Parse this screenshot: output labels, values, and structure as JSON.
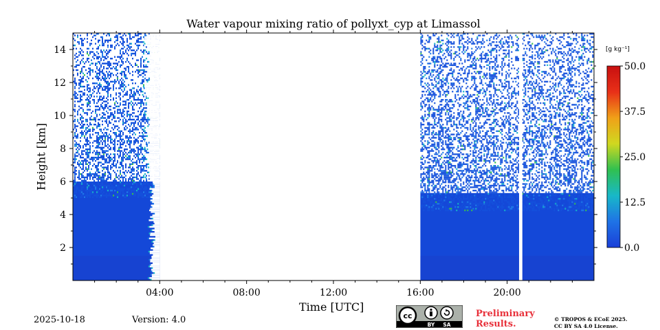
{
  "footer": {
    "date": "2025-10-18",
    "version": "Version: 4.0",
    "preliminary_line1": "Preliminary",
    "preliminary_line2": "Results.",
    "copyright_line1": "© TROPOS & ECoE 2025.",
    "copyright_line2": "CC BY SA 4.0 License.",
    "license_badge": {
      "cc": "cc",
      "by": "BY",
      "sa": "SA"
    }
  },
  "chart_data": {
    "type": "heatmap",
    "title": "Water vapour mixing ratio of pollyxt_cyp at Limassol",
    "xlabel": "Time [UTC]",
    "ylabel": "Height [km]",
    "xlim": [
      0,
      24
    ],
    "ylim": [
      0,
      15
    ],
    "x_ticks": [
      {
        "value": 4,
        "label": "04:00"
      },
      {
        "value": 8,
        "label": "08:00"
      },
      {
        "value": 12,
        "label": "12:00"
      },
      {
        "value": 16,
        "label": "16:00"
      },
      {
        "value": 20,
        "label": "20:00"
      }
    ],
    "y_ticks": [
      {
        "value": 2,
        "label": "2"
      },
      {
        "value": 4,
        "label": "4"
      },
      {
        "value": 6,
        "label": "6"
      },
      {
        "value": 8,
        "label": "8"
      },
      {
        "value": 10,
        "label": "10"
      },
      {
        "value": 12,
        "label": "12"
      },
      {
        "value": 14,
        "label": "14"
      }
    ],
    "colorbar": {
      "unit": "[g kg⁻¹]",
      "range": [
        0,
        50
      ],
      "ticks": [
        {
          "value": 0,
          "label": "0.0"
        },
        {
          "value": 12.5,
          "label": "12.5"
        },
        {
          "value": 25,
          "label": "25.0"
        },
        {
          "value": 37.5,
          "label": "37.5"
        },
        {
          "value": 50,
          "label": "50.0"
        }
      ],
      "colors": [
        "#1a3fd8",
        "#1f73e6",
        "#18b8c8",
        "#30c050",
        "#d0d820",
        "#f0a018",
        "#e83018",
        "#c81010"
      ]
    },
    "measurement_periods": [
      {
        "start": 0.0,
        "end": 4.0,
        "dense_top_km": 6.0,
        "sparse_top_km": 15.0,
        "typical_value": 2.5
      },
      {
        "start": 16.0,
        "end": 24.0,
        "dense_top_km": 5.3,
        "sparse_top_km": 15.0,
        "typical_value": 2.5
      }
    ],
    "data_gaps": [
      {
        "start": 4.0,
        "end": 16.0
      },
      {
        "start": 20.55,
        "end": 20.7
      }
    ]
  }
}
